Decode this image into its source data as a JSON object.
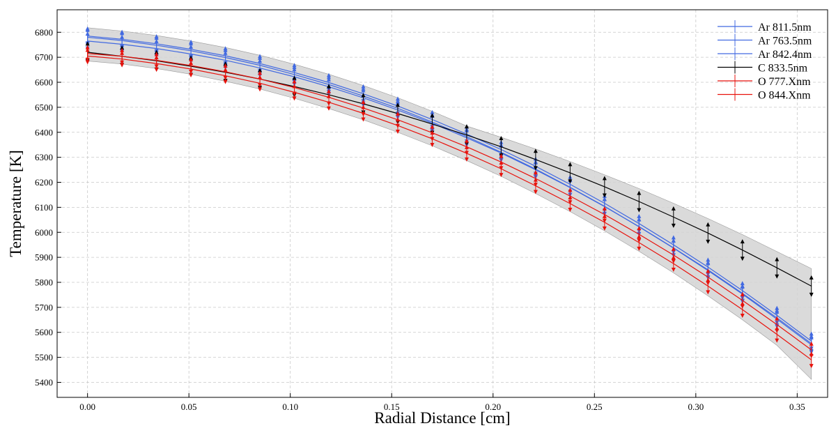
{
  "chart_data": {
    "type": "line",
    "x_label": "Radial Distance [cm]",
    "y_label": "Temperature [K]",
    "x": [
      0,
      0.017,
      0.034,
      0.051,
      0.068,
      0.085,
      0.102,
      0.119,
      0.136,
      0.153,
      0.17,
      0.187,
      0.204,
      0.221,
      0.238,
      0.255,
      0.272,
      0.289,
      0.306,
      0.323,
      0.34,
      0.357
    ],
    "series": [
      {
        "name": "Ar 811.5nm",
        "color": "#4169e1",
        "error": 30,
        "values": [
          6785,
          6772,
          6754,
          6732,
          6706,
          6675,
          6639,
          6599,
          6554,
          6505,
          6451,
          6393,
          6331,
          6264,
          6192,
          6116,
          6035,
          5950,
          5861,
          5767,
          5668,
          5565
        ]
      },
      {
        "name": "Ar 763.5nm",
        "color": "#4169e1",
        "error": 30,
        "values": [
          6765,
          6752,
          6735,
          6713,
          6688,
          6657,
          6622,
          6582,
          6538,
          6489,
          6436,
          6378,
          6317,
          6250,
          6179,
          6103,
          6023,
          5938,
          5850,
          5756,
          5658,
          5555
        ]
      },
      {
        "name": "Ar 842.4nm",
        "color": "#4169e1",
        "error": 30,
        "values": [
          6780,
          6767,
          6748,
          6726,
          6699,
          6668,
          6631,
          6591,
          6545,
          6496,
          6441,
          6383,
          6320,
          6253,
          6180,
          6104,
          6022,
          5937,
          5847,
          5753,
          5653,
          5550
        ]
      },
      {
        "name": "C 833.5nm",
        "color": "#000000",
        "error": 35,
        "values": [
          6720,
          6704,
          6686,
          6664,
          6640,
          6613,
          6583,
          6550,
          6514,
          6475,
          6433,
          6389,
          6342,
          6291,
          6238,
          6182,
          6123,
          6061,
          5997,
          5929,
          5858,
          5785
        ]
      },
      {
        "name": "O 777.Xnm",
        "color": "#e8120c",
        "error": 25,
        "values": [
          6715,
          6704,
          6688,
          6667,
          6642,
          6613,
          6579,
          6540,
          6497,
          6450,
          6398,
          6342,
          6281,
          6215,
          6145,
          6071,
          5992,
          5909,
          5821,
          5728,
          5631,
          5530
        ]
      },
      {
        "name": "O 844.Xnm",
        "color": "#e8120c",
        "error": 25,
        "values": [
          6705,
          6693,
          6675,
          6653,
          6626,
          6596,
          6560,
          6520,
          6476,
          6427,
          6374,
          6316,
          6254,
          6186,
          6115,
          6040,
          5959,
          5875,
          5785,
          5691,
          5592,
          5490
        ]
      }
    ],
    "band": {
      "color": "#d3d3d3",
      "upper": [
        6818,
        6805,
        6787,
        6765,
        6739,
        6708,
        6672,
        6632,
        6587,
        6538,
        6484,
        6425,
        6380,
        6333,
        6283,
        6230,
        6175,
        6116,
        6055,
        5991,
        5923,
        5855
      ],
      "lower": [
        6685,
        6673,
        6655,
        6632,
        6604,
        6573,
        6536,
        6495,
        6450,
        6400,
        6346,
        6287,
        6224,
        6155,
        6083,
        6006,
        5924,
        5838,
        5746,
        5650,
        5548,
        5412
      ]
    },
    "xlim": [
      -0.015,
      0.365
    ],
    "ylim": [
      5340,
      6890
    ],
    "xticks": [
      {
        "value": 0,
        "label": "0.00"
      },
      {
        "value": 0.05,
        "label": "0.05"
      },
      {
        "value": 0.1,
        "label": "0.10"
      },
      {
        "value": 0.15,
        "label": "0.15"
      },
      {
        "value": 0.2,
        "label": "0.20"
      },
      {
        "value": 0.25,
        "label": "0.25"
      },
      {
        "value": 0.3,
        "label": "0.30"
      },
      {
        "value": 0.35,
        "label": "0.35"
      }
    ],
    "yticks": [
      5400,
      5500,
      5600,
      5700,
      5800,
      5900,
      6000,
      6100,
      6200,
      6300,
      6400,
      6500,
      6600,
      6700,
      6800
    ],
    "grid": true,
    "legend": "upper right"
  }
}
